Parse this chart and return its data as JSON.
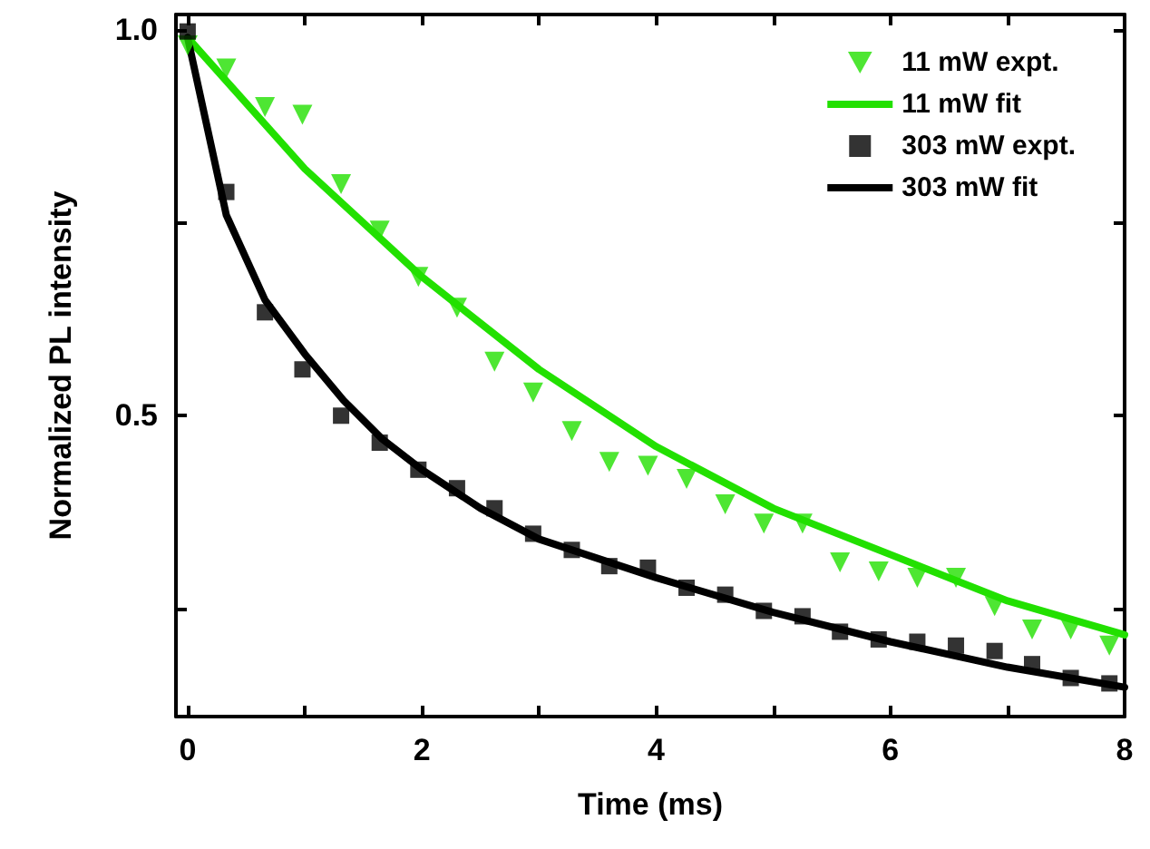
{
  "chart_data": {
    "type": "scatter",
    "xlabel": "Time (ms)",
    "ylabel": "Normalized PL intensity",
    "xlim": [
      -0.1,
      8
    ],
    "ylim": [
      0.11,
      1.02
    ],
    "xticks": [
      0,
      {
        "value": 1,
        "label": null
      },
      2,
      {
        "value": 3,
        "label": null
      },
      4,
      {
        "value": 5,
        "label": null
      },
      6,
      {
        "value": 7,
        "label": null
      },
      8
    ],
    "yticks": [
      {
        "value": 0.25,
        "label": null
      },
      {
        "value": 0.5,
        "label": "0.5"
      },
      {
        "value": 0.75,
        "label": null
      },
      {
        "value": 1,
        "label": "1.0"
      }
    ],
    "grid": false,
    "legend": "top right",
    "series": [
      {
        "name": "11 mW expt.",
        "marker": "triangle",
        "color": "#22e000",
        "x": [
          0,
          0.33,
          0.66,
          0.98,
          1.31,
          1.64,
          1.97,
          2.3,
          2.62,
          2.95,
          3.28,
          3.6,
          3.93,
          4.26,
          4.59,
          4.92,
          5.25,
          5.57,
          5.9,
          6.23,
          6.56,
          6.89,
          7.21,
          7.54,
          7.87
        ],
        "values": [
          0.98,
          0.95,
          0.9,
          0.89,
          0.8,
          0.74,
          0.68,
          0.64,
          0.57,
          0.53,
          0.48,
          0.44,
          0.435,
          0.418,
          0.385,
          0.36,
          0.36,
          0.31,
          0.298,
          0.29,
          0.29,
          0.253,
          0.223,
          0.223,
          0.202
        ]
      },
      {
        "name": "11 mW fit",
        "type": "line",
        "marker": "none",
        "color": "#22e000",
        "x": [
          0,
          1,
          2,
          3,
          4,
          5,
          6,
          7,
          8
        ],
        "values": [
          0.99,
          0.82,
          0.68,
          0.56,
          0.46,
          0.38,
          0.32,
          0.26,
          0.216
        ]
      },
      {
        "name": "303 mW expt.",
        "marker": "square",
        "color": "#000000",
        "x": [
          0,
          0.33,
          0.66,
          0.98,
          1.31,
          1.64,
          1.97,
          2.3,
          2.62,
          2.95,
          3.28,
          3.6,
          3.93,
          4.26,
          4.59,
          4.92,
          5.25,
          5.57,
          5.9,
          6.23,
          6.56,
          6.89,
          7.21,
          7.54,
          7.87
        ],
        "values": [
          0.998,
          0.79,
          0.634,
          0.56,
          0.5,
          0.465,
          0.43,
          0.406,
          0.38,
          0.347,
          0.326,
          0.305,
          0.303,
          0.277,
          0.268,
          0.247,
          0.24,
          0.22,
          0.21,
          0.207,
          0.202,
          0.195,
          0.178,
          0.16,
          0.153
        ]
      },
      {
        "name": "303 mW fit",
        "type": "line",
        "marker": "none",
        "color": "#000000",
        "x": [
          0,
          0.33,
          0.66,
          1,
          1.33,
          1.66,
          2,
          2.5,
          3,
          4,
          5,
          6,
          7,
          8
        ],
        "values": [
          0.99,
          0.76,
          0.65,
          0.58,
          0.52,
          0.47,
          0.43,
          0.38,
          0.34,
          0.29,
          0.245,
          0.207,
          0.174,
          0.148
        ]
      }
    ]
  }
}
